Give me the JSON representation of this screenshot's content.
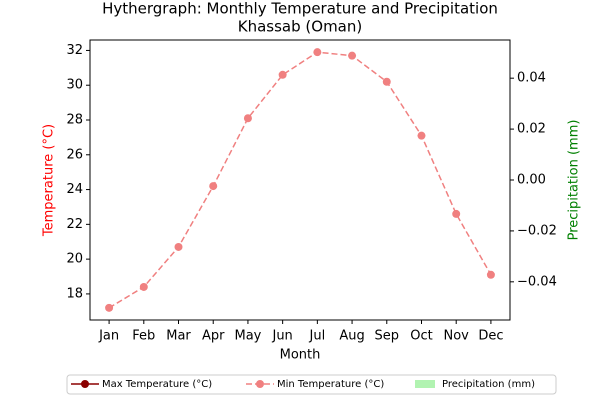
{
  "chart_data": {
    "type": "line",
    "title": "Hythergraph: Monthly Temperature and Precipitation",
    "subtitle": "Khassab (Oman)",
    "x_label": "Month",
    "y_label": "Temperature (°C)",
    "y2_label": "Precipitation (mm)",
    "categories": [
      "Jan",
      "Feb",
      "Mar",
      "Apr",
      "May",
      "Jun",
      "Jul",
      "Aug",
      "Sep",
      "Oct",
      "Nov",
      "Dec"
    ],
    "series": [
      {
        "name": "Max Temperature (°C)",
        "color": "#8b0000",
        "values": [
          null,
          null,
          null,
          null,
          null,
          null,
          null,
          null,
          null,
          null,
          null,
          null
        ]
      },
      {
        "name": "Min Temperature (°C)",
        "color": "#f08080",
        "values": [
          17.2,
          18.4,
          20.7,
          24.2,
          28.1,
          30.6,
          31.9,
          31.7,
          30.2,
          27.1,
          22.6,
          19.1
        ]
      },
      {
        "name": "Precipitation (mm)",
        "type": "bar",
        "axis": "y2",
        "color": "#90ee90",
        "values": [
          0,
          0,
          0,
          0,
          0,
          0,
          0,
          0,
          0,
          0,
          0,
          0
        ]
      }
    ],
    "ylim": [
      16.5,
      32.6
    ],
    "yticks": [
      18,
      20,
      22,
      24,
      26,
      28,
      30,
      32
    ],
    "y2lim": [
      -0.055,
      0.055
    ],
    "y2ticks": [
      {
        "value": -0.04,
        "label": "−0.04"
      },
      {
        "value": -0.02,
        "label": "−0.02"
      },
      {
        "value": 0,
        "label": "0.00"
      },
      0.02,
      0.04
    ],
    "y_color": "#ff0000",
    "y2_color": "#008000",
    "legend": "bottom"
  }
}
